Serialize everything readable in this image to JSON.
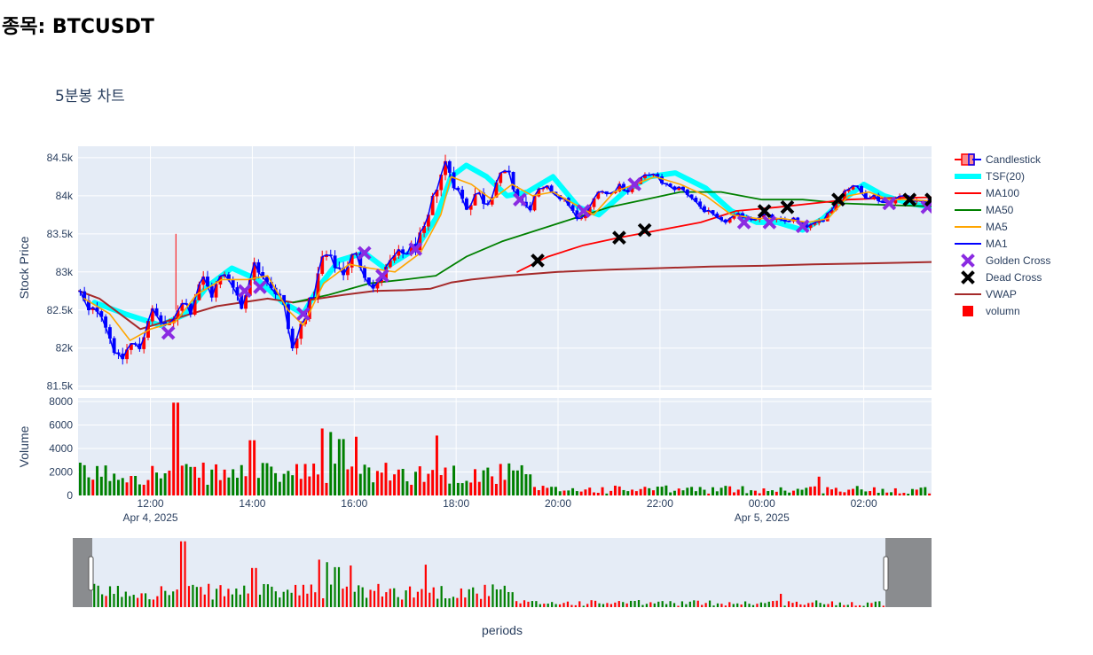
{
  "page": {
    "heading": "종목: BTCUSDT"
  },
  "chart_data": {
    "type": "candlestick",
    "title": "5분봉 차트",
    "price_axis": {
      "label": "Stock Price",
      "ticks": [
        "81.5k",
        "82k",
        "82.5k",
        "83k",
        "83.5k",
        "84k",
        "84.5k"
      ],
      "tick_values": [
        81500,
        82000,
        82500,
        83000,
        83500,
        84000,
        84500
      ],
      "range": [
        81450,
        84650
      ]
    },
    "volume_axis": {
      "label": "Volume",
      "ticks": [
        "0",
        "2000",
        "4000",
        "6000",
        "8000"
      ],
      "tick_values": [
        0,
        2000,
        4000,
        6000,
        8000
      ],
      "range": [
        0,
        8300
      ]
    },
    "x_axis": {
      "label": "periods",
      "ticks": [
        {
          "label": "12:00",
          "sub": "Apr 4, 2025",
          "t": 12.0
        },
        {
          "label": "14:00",
          "sub": "",
          "t": 14.0
        },
        {
          "label": "16:00",
          "sub": "",
          "t": 16.0
        },
        {
          "label": "18:00",
          "sub": "",
          "t": 18.0
        },
        {
          "label": "20:00",
          "sub": "",
          "t": 20.0
        },
        {
          "label": "22:00",
          "sub": "",
          "t": 22.0
        },
        {
          "label": "00:00",
          "sub": "Apr 5, 2025",
          "t": 24.0
        },
        {
          "label": "02:00",
          "sub": "",
          "t": 26.0
        }
      ],
      "range_hours": [
        10.58,
        27.33
      ]
    },
    "legend": {
      "placement": "right",
      "items": [
        {
          "name": "Candlestick",
          "kind": "candle",
          "color": "#ff0000",
          "color2": "#0000ff"
        },
        {
          "name": "TSF(20)",
          "kind": "line",
          "color": "#00ffff",
          "width": 6
        },
        {
          "name": "MA100",
          "kind": "line",
          "color": "#ff0000",
          "width": 2
        },
        {
          "name": "MA50",
          "kind": "line",
          "color": "#008000",
          "width": 2
        },
        {
          "name": "MA5",
          "kind": "line",
          "color": "#ffa500",
          "width": 2
        },
        {
          "name": "MA1",
          "kind": "line",
          "color": "#0000ff",
          "width": 2
        },
        {
          "name": "Golden Cross",
          "kind": "xmark",
          "color": "#8a2be2"
        },
        {
          "name": "Dead Cross",
          "kind": "xmark",
          "color": "#000000"
        },
        {
          "name": "VWAP",
          "kind": "line",
          "color": "#a52a2a",
          "width": 2
        },
        {
          "name": "volumn",
          "kind": "square",
          "color": "#ff0000"
        }
      ]
    },
    "price_path": [
      [
        10.6,
        82750
      ],
      [
        10.8,
        82450
      ],
      [
        11.0,
        82550
      ],
      [
        11.2,
        82150
      ],
      [
        11.4,
        81800
      ],
      [
        11.6,
        82050
      ],
      [
        11.8,
        82000
      ],
      [
        12.0,
        82500
      ],
      [
        12.2,
        82350
      ],
      [
        12.4,
        82250
      ],
      [
        12.6,
        82650
      ],
      [
        12.8,
        82500
      ],
      [
        13.0,
        82950
      ],
      [
        13.2,
        82700
      ],
      [
        13.4,
        82950
      ],
      [
        13.6,
        82900
      ],
      [
        13.8,
        82500
      ],
      [
        14.0,
        83100
      ],
      [
        14.2,
        83000
      ],
      [
        14.4,
        82800
      ],
      [
        14.6,
        82600
      ],
      [
        14.8,
        81950
      ],
      [
        15.0,
        82400
      ],
      [
        15.2,
        82700
      ],
      [
        15.4,
        83250
      ],
      [
        15.6,
        83100
      ],
      [
        15.8,
        83000
      ],
      [
        16.0,
        83250
      ],
      [
        16.2,
        83000
      ],
      [
        16.4,
        82750
      ],
      [
        16.6,
        83000
      ],
      [
        16.8,
        83200
      ],
      [
        17.0,
        83250
      ],
      [
        17.2,
        83350
      ],
      [
        17.4,
        83550
      ],
      [
        17.6,
        84100
      ],
      [
        17.8,
        84450
      ],
      [
        18.0,
        84100
      ],
      [
        18.2,
        83850
      ],
      [
        18.4,
        84050
      ],
      [
        18.6,
        83900
      ],
      [
        18.8,
        84200
      ],
      [
        19.0,
        84300
      ],
      [
        19.2,
        84000
      ],
      [
        19.4,
        83800
      ],
      [
        19.6,
        84050
      ],
      [
        19.8,
        84100
      ],
      [
        20.0,
        84000
      ],
      [
        20.2,
        83900
      ],
      [
        20.4,
        83650
      ],
      [
        20.6,
        83800
      ],
      [
        20.8,
        84100
      ],
      [
        21.0,
        84000
      ],
      [
        21.2,
        84150
      ],
      [
        21.4,
        84050
      ],
      [
        21.6,
        84200
      ],
      [
        21.8,
        84300
      ],
      [
        22.0,
        84200
      ],
      [
        22.2,
        84100
      ],
      [
        22.4,
        84100
      ],
      [
        22.6,
        84000
      ],
      [
        22.8,
        83850
      ],
      [
        23.0,
        83750
      ],
      [
        23.2,
        83650
      ],
      [
        23.4,
        83700
      ],
      [
        23.6,
        83750
      ],
      [
        23.8,
        83700
      ],
      [
        24.0,
        83750
      ],
      [
        24.2,
        83700
      ],
      [
        24.4,
        83650
      ],
      [
        24.6,
        83700
      ],
      [
        24.8,
        83600
      ],
      [
        25.0,
        83600
      ],
      [
        25.2,
        83700
      ],
      [
        25.4,
        83850
      ],
      [
        25.6,
        84050
      ],
      [
        25.8,
        84150
      ],
      [
        26.0,
        84000
      ],
      [
        26.2,
        84000
      ],
      [
        26.4,
        83900
      ],
      [
        26.6,
        83950
      ],
      [
        26.8,
        84000
      ],
      [
        27.0,
        83950
      ],
      [
        27.2,
        83900
      ],
      [
        27.33,
        83950
      ]
    ],
    "series": [
      {
        "name": "TSF(20)",
        "color": "#00ffff",
        "points": [
          [
            10.9,
            82600
          ],
          [
            11.5,
            82450
          ],
          [
            12.2,
            82300
          ],
          [
            12.7,
            82450
          ],
          [
            13.1,
            82800
          ],
          [
            13.6,
            83050
          ],
          [
            14.1,
            82900
          ],
          [
            14.6,
            82600
          ],
          [
            15.0,
            82450
          ],
          [
            15.3,
            82800
          ],
          [
            15.7,
            83150
          ],
          [
            16.2,
            83250
          ],
          [
            16.6,
            83050
          ],
          [
            17.2,
            83300
          ],
          [
            17.6,
            83700
          ],
          [
            17.9,
            84250
          ],
          [
            18.2,
            84400
          ],
          [
            18.6,
            84250
          ],
          [
            19.0,
            84000
          ],
          [
            19.4,
            84050
          ],
          [
            19.9,
            84250
          ],
          [
            20.4,
            83850
          ],
          [
            20.8,
            83750
          ],
          [
            21.3,
            84050
          ],
          [
            21.8,
            84250
          ],
          [
            22.3,
            84300
          ],
          [
            22.9,
            84100
          ],
          [
            23.4,
            83800
          ],
          [
            23.9,
            83650
          ],
          [
            24.3,
            83650
          ],
          [
            24.8,
            83550
          ],
          [
            25.2,
            83700
          ],
          [
            25.6,
            83950
          ],
          [
            26.0,
            84150
          ],
          [
            26.4,
            84000
          ],
          [
            26.9,
            83900
          ],
          [
            27.33,
            83850
          ]
        ]
      },
      {
        "name": "MA100",
        "color": "#ff0000",
        "points": [
          [
            19.2,
            83000
          ],
          [
            19.8,
            83200
          ],
          [
            20.5,
            83350
          ],
          [
            21.2,
            83450
          ],
          [
            22.0,
            83550
          ],
          [
            22.8,
            83650
          ],
          [
            23.5,
            83800
          ],
          [
            24.3,
            83850
          ],
          [
            25.0,
            83900
          ],
          [
            25.7,
            83950
          ],
          [
            26.5,
            83970
          ],
          [
            27.33,
            83980
          ]
        ]
      },
      {
        "name": "MA50",
        "color": "#008000",
        "points": [
          [
            14.8,
            82600
          ],
          [
            15.5,
            82700
          ],
          [
            16.3,
            82850
          ],
          [
            17.0,
            82900
          ],
          [
            17.6,
            82950
          ],
          [
            18.2,
            83200
          ],
          [
            18.9,
            83400
          ],
          [
            19.6,
            83550
          ],
          [
            20.3,
            83700
          ],
          [
            21.0,
            83850
          ],
          [
            21.7,
            83950
          ],
          [
            22.4,
            84050
          ],
          [
            23.2,
            84050
          ],
          [
            24.0,
            83950
          ],
          [
            24.8,
            83950
          ],
          [
            25.6,
            83900
          ],
          [
            26.4,
            83880
          ],
          [
            27.33,
            83860
          ]
        ]
      },
      {
        "name": "MA5",
        "color": "#ffa500",
        "points": [
          [
            10.7,
            82650
          ],
          [
            11.2,
            82450
          ],
          [
            11.6,
            82100
          ],
          [
            12.0,
            82250
          ],
          [
            12.5,
            82350
          ],
          [
            12.9,
            82700
          ],
          [
            13.4,
            82900
          ],
          [
            13.9,
            82900
          ],
          [
            14.3,
            82950
          ],
          [
            14.7,
            82500
          ],
          [
            15.0,
            82300
          ],
          [
            15.4,
            82850
          ],
          [
            15.9,
            83100
          ],
          [
            16.3,
            83050
          ],
          [
            16.8,
            83000
          ],
          [
            17.3,
            83250
          ],
          [
            17.7,
            83750
          ],
          [
            17.9,
            84250
          ],
          [
            18.3,
            84150
          ],
          [
            18.7,
            83950
          ],
          [
            19.1,
            84150
          ],
          [
            19.5,
            84000
          ],
          [
            19.9,
            84050
          ],
          [
            20.3,
            83900
          ],
          [
            20.7,
            83750
          ],
          [
            21.1,
            84050
          ],
          [
            21.5,
            84150
          ],
          [
            21.9,
            84250
          ],
          [
            22.4,
            84150
          ],
          [
            22.9,
            84000
          ],
          [
            23.4,
            83750
          ],
          [
            23.9,
            83700
          ],
          [
            24.4,
            83700
          ],
          [
            24.9,
            83650
          ],
          [
            25.3,
            83700
          ],
          [
            25.7,
            84000
          ],
          [
            26.1,
            84050
          ],
          [
            26.5,
            83950
          ],
          [
            26.9,
            83950
          ],
          [
            27.33,
            83930
          ]
        ]
      },
      {
        "name": "VWAP",
        "color": "#a52a2a",
        "points": [
          [
            10.6,
            82750
          ],
          [
            11.0,
            82650
          ],
          [
            11.4,
            82450
          ],
          [
            11.8,
            82250
          ],
          [
            12.3,
            82350
          ],
          [
            12.8,
            82450
          ],
          [
            13.3,
            82550
          ],
          [
            13.8,
            82600
          ],
          [
            14.3,
            82650
          ],
          [
            14.8,
            82600
          ],
          [
            15.3,
            82650
          ],
          [
            15.8,
            82700
          ],
          [
            16.4,
            82750
          ],
          [
            17.0,
            82760
          ],
          [
            17.5,
            82780
          ],
          [
            17.7,
            82820
          ],
          [
            17.9,
            82860
          ],
          [
            18.3,
            82900
          ],
          [
            19.0,
            82950
          ],
          [
            20.0,
            83000
          ],
          [
            21.0,
            83030
          ],
          [
            22.0,
            83050
          ],
          [
            23.0,
            83070
          ],
          [
            24.0,
            83080
          ],
          [
            25.0,
            83100
          ],
          [
            26.0,
            83110
          ],
          [
            27.33,
            83130
          ]
        ]
      }
    ],
    "golden_cross": [
      [
        12.35,
        82200
      ],
      [
        13.85,
        82750
      ],
      [
        14.15,
        82800
      ],
      [
        15.0,
        82450
      ],
      [
        16.2,
        83250
      ],
      [
        16.55,
        82950
      ],
      [
        17.2,
        83300
      ],
      [
        19.25,
        83950
      ],
      [
        20.5,
        83800
      ],
      [
        21.5,
        84150
      ],
      [
        23.65,
        83650
      ],
      [
        24.15,
        83650
      ],
      [
        24.8,
        83600
      ],
      [
        26.5,
        83900
      ],
      [
        27.25,
        83850
      ]
    ],
    "dead_cross": [
      [
        19.6,
        83150
      ],
      [
        21.2,
        83450
      ],
      [
        21.7,
        83550
      ],
      [
        24.05,
        83800
      ],
      [
        24.5,
        83850
      ],
      [
        25.5,
        83950
      ],
      [
        26.9,
        83950
      ],
      [
        27.33,
        83950
      ]
    ],
    "volume": {
      "max": 7900,
      "peaks": [
        [
          12.5,
          7900
        ],
        [
          14.0,
          4700
        ],
        [
          15.35,
          5700
        ],
        [
          15.55,
          5400
        ],
        [
          15.75,
          4800
        ],
        [
          16.05,
          5000
        ],
        [
          17.65,
          5100
        ]
      ]
    },
    "range_slider": {
      "window_hours": [
        10.58,
        27.33
      ]
    }
  }
}
